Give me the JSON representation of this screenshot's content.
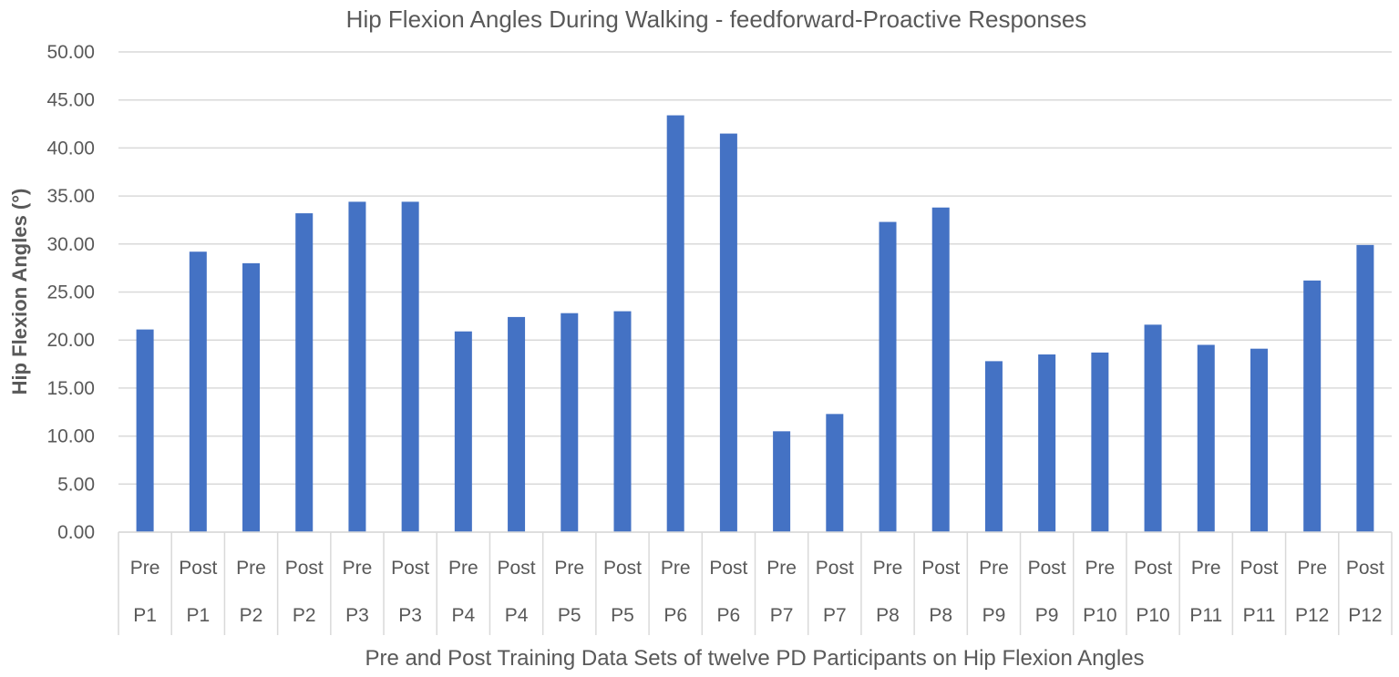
{
  "chart_data": {
    "type": "bar",
    "title": "Hip Flexion Angles During Walking - feedforward-Proactive Responses",
    "ylabel": "Hip Flexion Angles (°)",
    "xlabel": "Pre and Post Training Data Sets of twelve PD Participants on Hip Flexion Angles",
    "ylim": [
      0,
      50
    ],
    "yticks": [
      "0.00",
      "5.00",
      "10.00",
      "15.00",
      "20.00",
      "25.00",
      "30.00",
      "35.00",
      "40.00",
      "45.00",
      "50.00"
    ],
    "grid": true,
    "bar_color": "#4472C4",
    "categories": [
      {
        "phase": "Pre",
        "participant": "P1"
      },
      {
        "phase": "Post",
        "participant": "P1"
      },
      {
        "phase": "Pre",
        "participant": "P2"
      },
      {
        "phase": "Post",
        "participant": "P2"
      },
      {
        "phase": "Pre",
        "participant": "P3"
      },
      {
        "phase": "Post",
        "participant": "P3"
      },
      {
        "phase": "Pre",
        "participant": "P4"
      },
      {
        "phase": "Post",
        "participant": "P4"
      },
      {
        "phase": "Pre",
        "participant": "P5"
      },
      {
        "phase": "Post",
        "participant": "P5"
      },
      {
        "phase": "Pre",
        "participant": "P6"
      },
      {
        "phase": "Post",
        "participant": "P6"
      },
      {
        "phase": "Pre",
        "participant": "P7"
      },
      {
        "phase": "Post",
        "participant": "P7"
      },
      {
        "phase": "Pre",
        "participant": "P8"
      },
      {
        "phase": "Post",
        "participant": "P8"
      },
      {
        "phase": "Pre",
        "participant": "P9"
      },
      {
        "phase": "Post",
        "participant": "P9"
      },
      {
        "phase": "Pre",
        "participant": "P10"
      },
      {
        "phase": "Post",
        "participant": "P10"
      },
      {
        "phase": "Pre",
        "participant": "P11"
      },
      {
        "phase": "Post",
        "participant": "P11"
      },
      {
        "phase": "Pre",
        "participant": "P12"
      },
      {
        "phase": "Post",
        "participant": "P12"
      }
    ],
    "values": [
      21.1,
      29.2,
      28.0,
      33.2,
      34.4,
      34.4,
      20.9,
      22.4,
      22.8,
      23.0,
      43.4,
      41.5,
      10.5,
      12.3,
      32.3,
      33.8,
      17.8,
      18.5,
      18.7,
      21.6,
      19.5,
      19.1,
      26.2,
      29.9
    ]
  }
}
